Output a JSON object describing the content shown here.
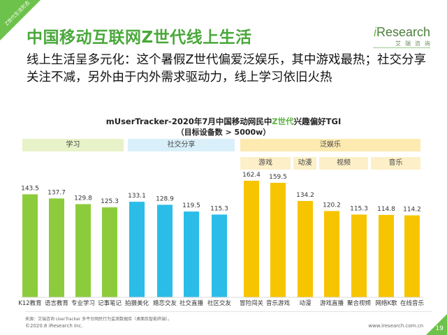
{
  "corner_tag": "Z世代生活形态",
  "page_title": "中国移动互联网Z世代线上生活",
  "logo": {
    "prefix": "i",
    "word": "Research",
    "sub": "艾瑞咨询"
  },
  "subtitle": "线上生活呈多元化：这个暑假Z世代偏爱泛娱乐，其中游戏最热；社交分享关注不减，另外由于内外需求驱动力，线上学习依旧火热",
  "chart_title": {
    "part1": "mUserTracker-2020年7月中国移动网民中",
    "highlight": "Z世代",
    "part2": "兴趣偏好TGI"
  },
  "chart_subtitle": "（目标设备数 > 5000w）",
  "colors": {
    "green": "#8ccc3c",
    "cyan": "#2bbde8",
    "yellow": "#f7c400",
    "band_green": "#e8f2c8",
    "band_cyan": "#d9f0fa",
    "band_yellow": "#fdeab0",
    "brand": "#6cc24a"
  },
  "groups": [
    {
      "label": "学习",
      "color": "#8ccc3c"
    },
    {
      "label": "社交分享",
      "color": "#2bbde8"
    },
    {
      "label": "泛娱乐",
      "color": "#f7c400"
    }
  ],
  "subgroups": [
    "游戏",
    "动漫",
    "视频",
    "音乐"
  ],
  "chart_data": {
    "type": "bar",
    "title": "mUserTracker-2020年7月中国移动网民中Z世代兴趣偏好TGI",
    "subtitle": "（目标设备数 > 5000w）",
    "categories": [
      "K12教育",
      "语言教育",
      "专业学习",
      "记事笔记",
      "拍摄美化",
      "婚恋交友",
      "社交直播",
      "社区交友",
      "冒险闯关",
      "音乐游戏",
      "动漫",
      "游戏直播",
      "聚合视频",
      "网络K歌",
      "在线音乐"
    ],
    "values": [
      143.5,
      137.7,
      129.8,
      125.3,
      133.1,
      128.9,
      119.5,
      115.3,
      162.4,
      159.5,
      134.2,
      120.2,
      115.3,
      114.8,
      114.2
    ],
    "value_labels": [
      "143.5",
      "137.7",
      "129.8",
      "125.3",
      "133.1",
      "128.9",
      "119.5",
      "115.3",
      "162.4",
      "159.5",
      "134.2",
      "120.2",
      "115.3",
      "114.8",
      "114.2"
    ],
    "group_of_category": [
      0,
      0,
      0,
      0,
      1,
      1,
      1,
      1,
      2,
      2,
      2,
      2,
      2,
      2,
      2
    ],
    "ylim": [
      0,
      175
    ],
    "grid": false,
    "legend": "none"
  },
  "footer": {
    "source": "来源：艾瑞咨询 UserTracker 多平台网民行为监测数据库（桌面及智能终端）。",
    "copyright": "©2020.8 iResearch Inc.",
    "url": "www.iresearch.com.cn",
    "page": "19"
  }
}
